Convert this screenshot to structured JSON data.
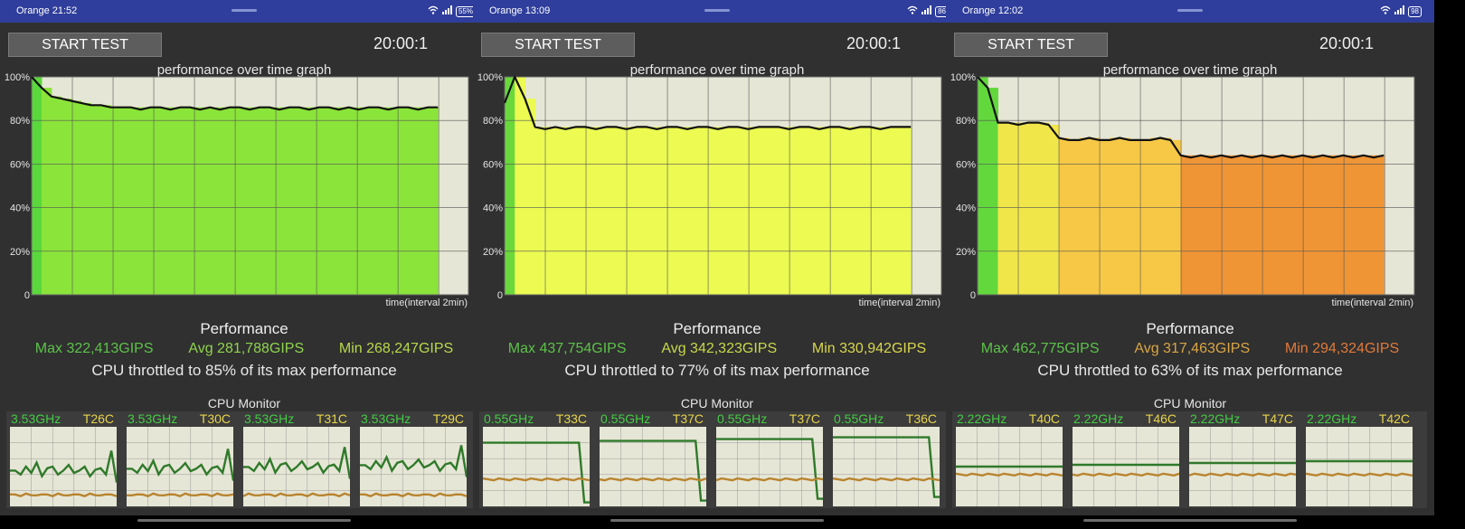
{
  "screens": [
    {
      "statusbar": {
        "time": "Orange 21:52",
        "right_text": "55%"
      },
      "start_label": "START TEST",
      "timer": "20:00:1",
      "graph_title": "performance over time graph",
      "y_labels": [
        "100%",
        "80%",
        "60%",
        "40%",
        "20%",
        "0"
      ],
      "x_label": "time(interval 2min)",
      "performance_heading": "Performance",
      "stats": {
        "max": "Max 322,413GIPS",
        "avg": "Avg 281,788GIPS",
        "min": "Min 268,247GIPS"
      },
      "stat_colors": {
        "max": "#5dc24a",
        "avg": "#8fd44e",
        "min": "#b8d94c"
      },
      "throttle": "CPU throttled to 85% of its max performance",
      "cpu_monitor_title": "CPU Monitor",
      "cores": [
        {
          "freq": "3.53GHz",
          "temp": "T26C"
        },
        {
          "freq": "3.53GHz",
          "temp": "T30C"
        },
        {
          "freq": "3.53GHz",
          "temp": "T31C"
        },
        {
          "freq": "3.53GHz",
          "temp": "T29C"
        }
      ],
      "chart_data": {
        "type": "line",
        "title": "performance over time graph",
        "xlabel": "time(interval 2min)",
        "ylabel": "",
        "ylim": [
          0,
          100
        ],
        "y_unit": "%",
        "x_range_fraction_of_axis": [
          0,
          0.93
        ],
        "series": [
          {
            "values": [
              100,
              95,
              91,
              90,
              89,
              88,
              87,
              87,
              86,
              86,
              86,
              85,
              86,
              86,
              85,
              86,
              86,
              85,
              86,
              85,
              86,
              86,
              85,
              86,
              86,
              85,
              86,
              86,
              85,
              86,
              86,
              85,
              86,
              85,
              86,
              86,
              85,
              86,
              86,
              85,
              86,
              86
            ]
          }
        ],
        "fill_color": "#8be43a",
        "fill_start_color": "#5ad83c",
        "background_color": "#e6e6d6",
        "grid": true
      }
    },
    {
      "statusbar": {
        "time": "Orange 13:09",
        "right_text": "86"
      },
      "start_label": "START TEST",
      "timer": "20:00:1",
      "graph_title": "performance over time graph",
      "y_labels": [
        "100%",
        "80%",
        "60%",
        "40%",
        "20%",
        "0"
      ],
      "x_label": "time(interval 2min)",
      "performance_heading": "Performance",
      "stats": {
        "max": "Max 437,754GIPS",
        "avg": "Avg 342,323GIPS",
        "min": "Min 330,942GIPS"
      },
      "stat_colors": {
        "max": "#5dc24a",
        "avg": "#c8d84a",
        "min": "#d9d64c"
      },
      "throttle": "CPU throttled to 77% of its max performance",
      "cpu_monitor_title": "CPU Monitor",
      "cores": [
        {
          "freq": "0.55GHz",
          "temp": "T33C"
        },
        {
          "freq": "0.55GHz",
          "temp": "T37C"
        },
        {
          "freq": "0.55GHz",
          "temp": "T37C"
        },
        {
          "freq": "0.55GHz",
          "temp": "T36C"
        }
      ],
      "chart_data": {
        "type": "line",
        "title": "performance over time graph",
        "xlabel": "time(interval 2min)",
        "ylabel": "",
        "ylim": [
          0,
          100
        ],
        "y_unit": "%",
        "x_range_fraction_of_axis": [
          0,
          0.93
        ],
        "series": [
          {
            "values": [
              88,
              100,
              90,
              77,
              76,
              77,
              76,
              77,
              77,
              76,
              77,
              77,
              76,
              77,
              77,
              76,
              77,
              77,
              76,
              77,
              77,
              76,
              77,
              77,
              76,
              77,
              77,
              77,
              76,
              77,
              77,
              76,
              77,
              77,
              76,
              77,
              77,
              76,
              77,
              77,
              77
            ]
          }
        ],
        "fill_color": "#ecfa52",
        "fill_start_color": "#6ad83c",
        "background_color": "#e6e6d6",
        "grid": true
      }
    },
    {
      "statusbar": {
        "time": "Orange 12:02",
        "right_text": "98"
      },
      "start_label": "START TEST",
      "timer": "20:00:1",
      "graph_title": "performance over time graph",
      "y_labels": [
        "100%",
        "80%",
        "60%",
        "40%",
        "20%",
        "0"
      ],
      "x_label": "time(interval 2min)",
      "performance_heading": "Performance",
      "stats": {
        "max": "Max 462,775GIPS",
        "avg": "Avg 317,463GIPS",
        "min": "Min 294,324GIPS"
      },
      "stat_colors": {
        "max": "#5dc24a",
        "avg": "#d9a545",
        "min": "#e07a3a"
      },
      "throttle": "CPU throttled to 63% of its max performance",
      "cpu_monitor_title": "CPU Monitor",
      "cores": [
        {
          "freq": "2.22GHz",
          "temp": "T40C"
        },
        {
          "freq": "2.22GHz",
          "temp": "T46C"
        },
        {
          "freq": "2.22GHz",
          "temp": "T47C"
        },
        {
          "freq": "2.22GHz",
          "temp": "T42C"
        }
      ],
      "chart_data": {
        "type": "line",
        "title": "performance over time graph",
        "xlabel": "time(interval 2min)",
        "ylabel": "",
        "ylim": [
          0,
          100
        ],
        "y_unit": "%",
        "x_range_fraction_of_axis": [
          0,
          0.93
        ],
        "series": [
          {
            "values": [
              100,
              95,
              79,
              79,
              78,
              79,
              79,
              78,
              72,
              71,
              71,
              72,
              71,
              71,
              72,
              71,
              71,
              71,
              72,
              71,
              64,
              63,
              64,
              63,
              64,
              63,
              64,
              63,
              64,
              63,
              64,
              63,
              64,
              63,
              64,
              63,
              64,
              63,
              64,
              63,
              64
            ]
          }
        ],
        "fill_colors_by_phase": [
          "#62d83c",
          "#f0e64a",
          "#f7c846",
          "#ef9535"
        ],
        "background_color": "#e6e6d6",
        "grid": true
      }
    }
  ]
}
